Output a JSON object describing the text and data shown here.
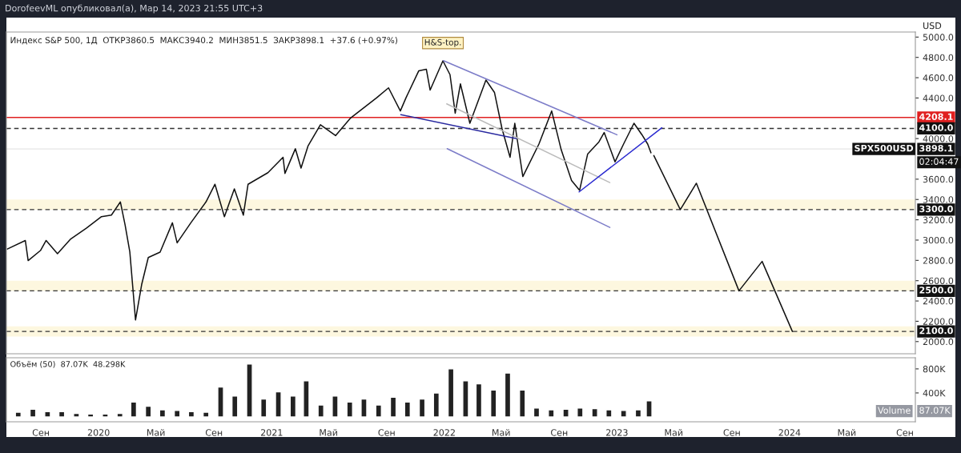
{
  "chart_data": [
    {
      "type": "line",
      "title": "DorofeevML опубликовал(а), Мар 14, 2023 21:55 UTC+3",
      "subtitle": "Индекс S&P 500, 1Д  ОТКР3860.5  МАКС3940.2  МИН3851.5  ЗАКР3898.1  +37.6 (+0.97%)",
      "ylabel": "USD",
      "xlim": [
        "2019-06-20",
        "2024-09-23"
      ],
      "ylim": [
        1880,
        5050
      ],
      "yticks": [
        {
          "value": 2000,
          "label": "2000.0"
        },
        {
          "value": 2200,
          "label": "2200.0"
        },
        {
          "value": 2400,
          "label": "2400.0"
        },
        {
          "value": 2600,
          "label": "2600.0"
        },
        {
          "value": 2800,
          "label": "2800.0"
        },
        {
          "value": 3000,
          "label": "3000.0"
        },
        {
          "value": 3200,
          "label": "3200.0"
        },
        {
          "value": 3400,
          "label": "3400.0"
        },
        {
          "value": 3600,
          "label": "3600.0"
        },
        {
          "value": 4000,
          "label": "4000.0"
        },
        {
          "value": 4400,
          "label": "4400.0"
        },
        {
          "value": 4600,
          "label": "4600.0"
        },
        {
          "value": 4800,
          "label": "4800.0"
        },
        {
          "value": 5000,
          "label": "5000.0"
        }
      ],
      "tick_labels": "y",
      "grid": false,
      "bands": [
        {
          "axis": "y",
          "from": 3300,
          "to": 3400,
          "color": "#fdf7df"
        },
        {
          "axis": "y",
          "from": 2500,
          "to": 2600,
          "color": "#fdf7df"
        },
        {
          "axis": "y",
          "from": 2050,
          "to": 2150,
          "color": "#fdf7df"
        }
      ],
      "ref_lines": [
        {
          "axis": "y",
          "value": 4208.1,
          "label": "4208.1",
          "color": "#e02020",
          "line_style": "solid"
        },
        {
          "axis": "y",
          "value": 4100,
          "label": "4100.0",
          "color": "#333333",
          "line_style": "dashed"
        },
        {
          "axis": "y",
          "value": 3898.1,
          "label": "3898.1",
          "color": "#e6e6e6",
          "line_style": "solid"
        },
        {
          "axis": "y",
          "value": 3300,
          "label": "3300.0",
          "color": "#333333",
          "line_style": "dashed"
        },
        {
          "axis": "y",
          "value": 2500,
          "label": "2500.0",
          "color": "#333333",
          "line_style": "dashed"
        },
        {
          "axis": "y",
          "value": 2100,
          "label": "2100.0",
          "color": "#333333",
          "line_style": "dashed"
        }
      ],
      "annotations": [
        {
          "text": "H&S-top.",
          "x": "2021-12-29",
          "y": 4766
        },
        "SPX500USD",
        "02:04:47"
      ],
      "series": [
        {
          "color": "#111111",
          "x": [
            "2019-06-22",
            "2019-07-30",
            "2019-08-05",
            "2019-08-31",
            "2019-09-12",
            "2019-10-06",
            "2019-11-03",
            "2019-12-06",
            "2020-01-07",
            "2020-01-28",
            "2020-02-16",
            "2020-02-26",
            "2020-03-07",
            "2020-03-19",
            "2020-04-01",
            "2020-04-15",
            "2020-05-10",
            "2020-06-05",
            "2020-06-15",
            "2020-07-14",
            "2020-08-15",
            "2020-09-03",
            "2020-09-23",
            "2020-10-14",
            "2020-11-02",
            "2020-11-12",
            "2020-12-24",
            "2021-01-25",
            "2021-01-29",
            "2021-02-20",
            "2021-03-04",
            "2021-03-19",
            "2021-04-14",
            "2021-05-16",
            "2021-06-17",
            "2021-08-11",
            "2021-09-05",
            "2021-09-30",
            "2021-10-12",
            "2021-11-08",
            "2021-11-24",
            "2021-12-02",
            "2021-12-29",
            "2022-01-13",
            "2022-01-24",
            "2022-02-04",
            "2022-02-24",
            "2022-03-30",
            "2022-04-17",
            "2022-05-03",
            "2022-05-20",
            "2022-05-30",
            "2022-06-16",
            "2022-07-20",
            "2022-08-16",
            "2022-09-05",
            "2022-09-27",
            "2022-10-14",
            "2022-10-31",
            "2022-11-24",
            "2022-12-05",
            "2022-12-28",
            "2023-01-15",
            "2023-02-06",
            "2023-02-23",
            "2023-03-07",
            "2023-03-14"
          ],
          "values": [
            2912,
            2996,
            2798,
            2897,
            2996,
            2866,
            3011,
            3117,
            3231,
            3246,
            3376,
            3148,
            2882,
            2213,
            2562,
            2828,
            2882,
            3170,
            2973,
            3170,
            3376,
            3550,
            3231,
            3505,
            3246,
            3550,
            3664,
            3816,
            3657,
            3900,
            3710,
            3930,
            4136,
            4029,
            4204,
            4402,
            4500,
            4272,
            4402,
            4668,
            4683,
            4478,
            4766,
            4630,
            4250,
            4539,
            4151,
            4577,
            4455,
            4098,
            3816,
            4151,
            3626,
            3946,
            4272,
            3892,
            3588,
            3490,
            3847,
            3968,
            4060,
            3771,
            3946,
            4151,
            4037,
            3946,
            3860
          ]
        },
        {
          "color": "#111111",
          "x": [
            "2023-03-20",
            "2023-05-15",
            "2023-06-18",
            "2023-09-16",
            "2023-11-04",
            "2024-01-07"
          ],
          "values": [
            3833,
            3300,
            3560,
            2500,
            2790,
            2100
          ]
        },
        {
          "color": "#2a2aa0",
          "x": [
            "2021-10-01",
            "2022-06-03"
          ],
          "values": [
            4236,
            4000
          ]
        },
        {
          "color": "#7c7cc8",
          "x": [
            "2021-12-30",
            "2023-01-01"
          ],
          "values": [
            4768,
            4038
          ]
        },
        {
          "color": "#7c7cc8",
          "x": [
            "2022-01-07",
            "2022-12-17"
          ],
          "values": [
            3901,
            3125
          ]
        },
        {
          "color": "#bbbbbb",
          "x": [
            "2022-01-06",
            "2022-12-17"
          ],
          "values": [
            4342,
            3567
          ]
        },
        {
          "color": "#2a2ad0",
          "x": [
            "2022-10-13",
            "2023-04-06"
          ],
          "values": [
            3475,
            4106
          ]
        }
      ]
    },
    {
      "type": "bar",
      "title": "Объём (50)  87.07K  48.298K",
      "color": "#222222",
      "xlim": [
        "2019-06-20",
        "2024-09-23"
      ],
      "ylim": [
        -80,
        985
      ],
      "yticks": [
        {
          "value": 400,
          "label": "400K"
        },
        {
          "value": 800,
          "label": "800K"
        }
      ],
      "xticks": [
        {
          "value": "2019-09-01",
          "label": "Сен"
        },
        {
          "value": "2020-01-01",
          "label": "2020"
        },
        {
          "value": "2020-05-01",
          "label": "Май"
        },
        {
          "value": "2020-09-01",
          "label": "Сен"
        },
        {
          "value": "2021-01-01",
          "label": "2021"
        },
        {
          "value": "2021-05-01",
          "label": "Май"
        },
        {
          "value": "2021-09-01",
          "label": "Сен"
        },
        {
          "value": "2022-01-01",
          "label": "2022"
        },
        {
          "value": "2022-05-01",
          "label": "Май"
        },
        {
          "value": "2022-09-01",
          "label": "Сен"
        },
        {
          "value": "2023-01-01",
          "label": "2023"
        },
        {
          "value": "2023-05-01",
          "label": "Май"
        },
        {
          "value": "2023-09-01",
          "label": "Сен"
        },
        {
          "value": "2024-01-01",
          "label": "2024"
        },
        {
          "value": "2024-05-01",
          "label": "Май"
        },
        {
          "value": "2024-09-01",
          "label": "Сен"
        }
      ],
      "grid": false,
      "annotations": [
        "Volume",
        "87.07K"
      ],
      "x": [
        "2019-07-15",
        "2019-08-15",
        "2019-09-15",
        "2019-10-15",
        "2019-11-15",
        "2019-12-15",
        "2020-01-15",
        "2020-02-15",
        "2020-03-15",
        "2020-04-15",
        "2020-05-15",
        "2020-06-15",
        "2020-07-15",
        "2020-08-15",
        "2020-09-15",
        "2020-10-15",
        "2020-11-15",
        "2020-12-15",
        "2021-01-15",
        "2021-02-15",
        "2021-03-15",
        "2021-04-15",
        "2021-05-15",
        "2021-06-15",
        "2021-07-15",
        "2021-08-15",
        "2021-09-15",
        "2021-10-15",
        "2021-11-15",
        "2021-12-15",
        "2022-01-15",
        "2022-02-15",
        "2022-03-15",
        "2022-04-15",
        "2022-05-15",
        "2022-06-15",
        "2022-07-15",
        "2022-08-15",
        "2022-09-15",
        "2022-10-15",
        "2022-11-15",
        "2022-12-15",
        "2023-01-15",
        "2023-02-15",
        "2023-03-10"
      ],
      "values": [
        80,
        130,
        90,
        90,
        60,
        50,
        50,
        60,
        250,
        180,
        120,
        110,
        90,
        80,
        500,
        350,
        880,
        300,
        420,
        350,
        600,
        200,
        350,
        250,
        300,
        200,
        330,
        250,
        300,
        400,
        800,
        600,
        550,
        450,
        730,
        450,
        150,
        120,
        130,
        150,
        140,
        120,
        110,
        120,
        270
      ]
    }
  ]
}
